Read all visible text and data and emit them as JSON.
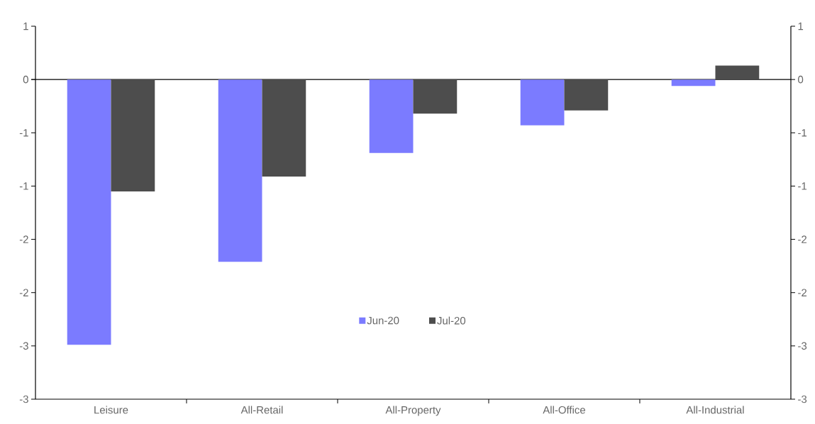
{
  "chart_data": {
    "type": "bar",
    "categories": [
      "Leisure",
      "All-Retail",
      "All-Property",
      "All-Office",
      "All-Industrial"
    ],
    "series": [
      {
        "name": "Jun-20",
        "color": "#7b7bff",
        "values": [
          -2.49,
          -1.71,
          -0.69,
          -0.43,
          -0.06
        ]
      },
      {
        "name": "Jul-20",
        "color": "#4d4d4d",
        "values": [
          -1.05,
          -0.91,
          -0.32,
          -0.29,
          0.13
        ]
      }
    ],
    "ylim": [
      -3,
      0.5
    ],
    "yticks": [
      {
        "value": 0.5,
        "label": "1"
      },
      0,
      {
        "value": -0.5,
        "label": "-1"
      },
      {
        "value": -1,
        "label": "-1"
      },
      {
        "value": -1.5,
        "label": "-2"
      },
      {
        "value": -2,
        "label": "-2"
      },
      {
        "value": -2.5,
        "label": "-3"
      },
      {
        "value": -3,
        "label": "-3"
      }
    ],
    "y2lim": [
      -3,
      0.5
    ],
    "y2ticks": [
      {
        "value": 0.5,
        "label": "1"
      },
      0,
      {
        "value": -0.5,
        "label": "-1"
      },
      {
        "value": -1,
        "label": "-1"
      },
      {
        "value": -1.5,
        "label": "-2"
      },
      {
        "value": -2,
        "label": "-2"
      },
      {
        "value": -2.5,
        "label": "-3"
      },
      {
        "value": -3,
        "label": "-3"
      }
    ],
    "legend": "bottom"
  }
}
